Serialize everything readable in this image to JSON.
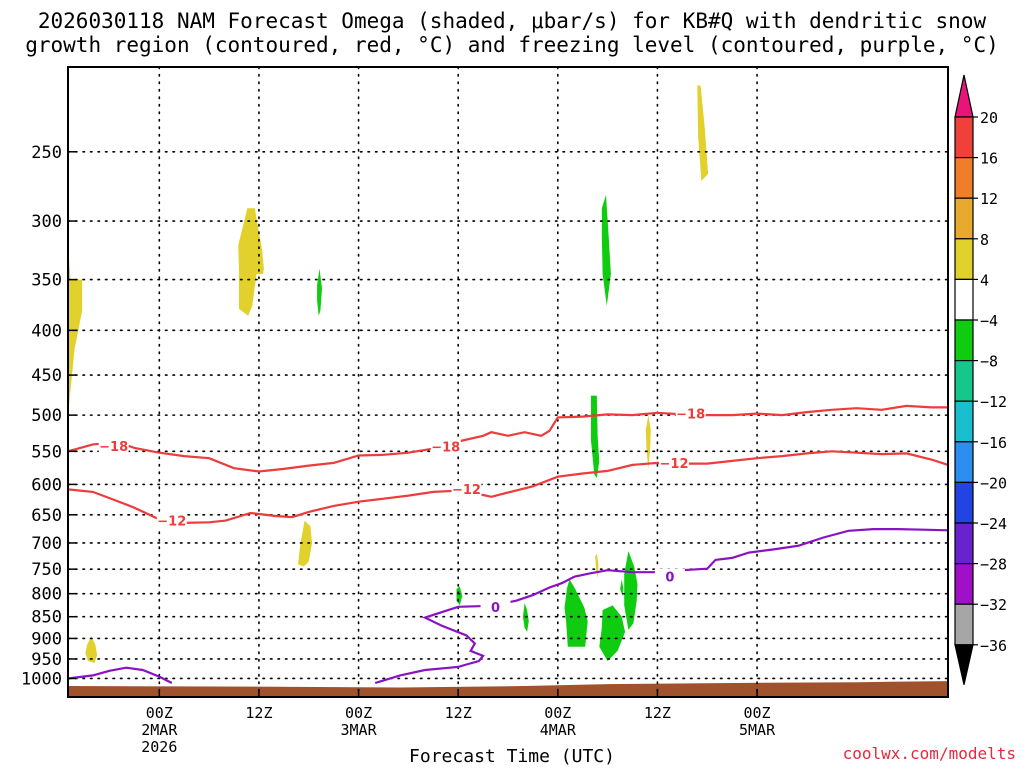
{
  "chart_data": {
    "type": "heatmap",
    "title_line1": "2026030118 NAM Forecast Omega (shaded, μbar/s) for KB#Q with dendritic snow",
    "title_line2": "growth region (contoured, red, °C) and freezing level (contoured, purple, °C)",
    "xlabel": "Forecast Time (UTC)",
    "credit": "coolwx.com/modelts",
    "y_axis": {
      "type": "pressure_log",
      "range_hpa": [
        1050,
        200
      ],
      "ticks": [
        250,
        300,
        350,
        400,
        450,
        500,
        550,
        600,
        650,
        700,
        750,
        800,
        850,
        900,
        950,
        1000
      ]
    },
    "x_axis": {
      "units": "forecast hours",
      "range": [
        -5,
        101
      ],
      "ticks": [
        {
          "hour": 6,
          "lines": [
            "00Z",
            "2MAR",
            "2026"
          ]
        },
        {
          "hour": 18,
          "lines": [
            "12Z"
          ]
        },
        {
          "hour": 30,
          "lines": [
            "00Z",
            "3MAR"
          ]
        },
        {
          "hour": 42,
          "lines": [
            "12Z"
          ]
        },
        {
          "hour": 54,
          "lines": [
            "00Z",
            "4MAR"
          ]
        },
        {
          "hour": 66,
          "lines": [
            "12Z"
          ]
        },
        {
          "hour": 78,
          "lines": [
            "00Z",
            "5MAR"
          ]
        }
      ]
    },
    "colorbar": {
      "labels": [
        "20",
        "16",
        "12",
        "8",
        "4",
        "−4",
        "−8",
        "−12",
        "−16",
        "−20",
        "−24",
        "−28",
        "−32",
        "−36"
      ],
      "bins": [
        {
          "lo": 16,
          "hi": 20,
          "color": "#f0403a"
        },
        {
          "lo": 12,
          "hi": 16,
          "color": "#ef7e2a"
        },
        {
          "lo": 8,
          "hi": 12,
          "color": "#e8a92f"
        },
        {
          "lo": 4,
          "hi": 8,
          "color": "#e2d12c"
        },
        {
          "lo": -4,
          "hi": 4,
          "color": "#ffffff"
        },
        {
          "lo": -8,
          "hi": -4,
          "color": "#10cc10"
        },
        {
          "lo": -12,
          "hi": -8,
          "color": "#16c78c"
        },
        {
          "lo": -16,
          "hi": -12,
          "color": "#19bfcf"
        },
        {
          "lo": -20,
          "hi": -16,
          "color": "#2b8ef0"
        },
        {
          "lo": -24,
          "hi": -20,
          "color": "#2244e2"
        },
        {
          "lo": -28,
          "hi": -24,
          "color": "#6a22cf"
        },
        {
          "lo": -32,
          "hi": -28,
          "color": "#a010c8"
        },
        {
          "lo": -36,
          "hi": -32,
          "color": "#a6a6a6"
        }
      ],
      "over_color": "#e8147a",
      "under_color": "#000000"
    },
    "omega_regions": [
      {
        "value": 5,
        "points": [
          [
            -5,
            320
          ],
          [
            -4.7,
            350
          ],
          [
            -3.3,
            350
          ],
          [
            -3.3,
            380
          ],
          [
            -4.2,
            420
          ],
          [
            -5,
            500
          ]
        ]
      },
      {
        "value": 5,
        "points": [
          [
            -2.7,
            915
          ],
          [
            -2.2,
            895
          ],
          [
            -1.7,
            915
          ],
          [
            -1.5,
            940
          ],
          [
            -1.8,
            960
          ],
          [
            -2.6,
            955
          ],
          [
            -2.9,
            935
          ]
        ]
      },
      {
        "value": 5,
        "points": [
          [
            15.5,
            320
          ],
          [
            16.6,
            290
          ],
          [
            17.5,
            290
          ],
          [
            18.4,
            325
          ],
          [
            18.6,
            340
          ],
          [
            18.5,
            345
          ],
          [
            17.7,
            345
          ],
          [
            17.2,
            375
          ],
          [
            16.7,
            385
          ],
          [
            15.6,
            378
          ],
          [
            15.6,
            340
          ]
        ]
      },
      {
        "value": 5,
        "points": [
          [
            23.5,
            660
          ],
          [
            24.2,
            670
          ],
          [
            24.4,
            700
          ],
          [
            24.0,
            735
          ],
          [
            23.4,
            745
          ],
          [
            22.7,
            740
          ],
          [
            23.0,
            700
          ]
        ]
      },
      {
        "value": 5,
        "points": [
          [
            71.2,
            210
          ],
          [
            71.7,
            235
          ],
          [
            72.1,
            265
          ],
          [
            71.3,
            270
          ],
          [
            70.9,
            240
          ],
          [
            70.8,
            210
          ]
        ]
      },
      {
        "value": 5,
        "points": [
          [
            64.9,
            500
          ],
          [
            65.2,
            520
          ],
          [
            65.1,
            550
          ],
          [
            64.9,
            575
          ],
          [
            64.7,
            550
          ],
          [
            64.6,
            520
          ]
        ]
      },
      {
        "value": 5,
        "points": [
          [
            58.7,
            720
          ],
          [
            58.9,
            740
          ],
          [
            58.8,
            768
          ],
          [
            58.6,
            750
          ],
          [
            58.5,
            725
          ]
        ]
      },
      {
        "value": -5,
        "points": [
          [
            25.0,
            355
          ],
          [
            25.3,
            340
          ],
          [
            25.6,
            358
          ],
          [
            25.4,
            380
          ],
          [
            25.2,
            385
          ],
          [
            25.0,
            370
          ]
        ]
      },
      {
        "value": -5,
        "points": [
          [
            59.3,
            290
          ],
          [
            59.8,
            280
          ],
          [
            60.1,
            310
          ],
          [
            60.4,
            345
          ],
          [
            59.9,
            375
          ],
          [
            59.4,
            345
          ],
          [
            59.3,
            310
          ]
        ]
      },
      {
        "value": -5,
        "points": [
          [
            58.0,
            475
          ],
          [
            58.7,
            475
          ],
          [
            58.8,
            530
          ],
          [
            59.0,
            565
          ],
          [
            58.7,
            590
          ],
          [
            58.4,
            585
          ],
          [
            58.0,
            535
          ]
        ]
      },
      {
        "value": -5,
        "points": [
          [
            41.8,
            790
          ],
          [
            42.2,
            785
          ],
          [
            42.5,
            805
          ],
          [
            42.2,
            825
          ],
          [
            41.8,
            815
          ]
        ]
      },
      {
        "value": -5,
        "points": [
          [
            50.0,
            820
          ],
          [
            50.3,
            835
          ],
          [
            50.5,
            860
          ],
          [
            50.3,
            885
          ],
          [
            50.0,
            875
          ],
          [
            49.8,
            850
          ]
        ]
      },
      {
        "value": -5,
        "points": [
          [
            55.4,
            770
          ],
          [
            56.1,
            790
          ],
          [
            57.2,
            830
          ],
          [
            57.6,
            860
          ],
          [
            57.3,
            920
          ],
          [
            55.2,
            920
          ],
          [
            55.0,
            860
          ],
          [
            54.8,
            830
          ],
          [
            55.1,
            790
          ]
        ]
      },
      {
        "value": -5,
        "points": [
          [
            62.5,
            715
          ],
          [
            63.2,
            745
          ],
          [
            63.6,
            780
          ],
          [
            63.5,
            815
          ],
          [
            63.1,
            865
          ],
          [
            62.5,
            880
          ],
          [
            62.0,
            825
          ],
          [
            62.0,
            760
          ]
        ]
      },
      {
        "value": -5,
        "points": [
          [
            59.4,
            835
          ],
          [
            60.6,
            825
          ],
          [
            61.7,
            850
          ],
          [
            62.1,
            885
          ],
          [
            61.2,
            930
          ],
          [
            60.0,
            955
          ],
          [
            59.0,
            920
          ],
          [
            59.3,
            875
          ]
        ]
      },
      {
        "value": -5,
        "points": [
          [
            61.7,
            770
          ],
          [
            61.9,
            790
          ],
          [
            61.8,
            805
          ],
          [
            61.5,
            790
          ]
        ]
      }
    ],
    "dgz_contours": [
      {
        "label": "-18",
        "label_at": [
          0.5,
          542
        ],
        "points": [
          [
            -5,
            550
          ],
          [
            -2,
            540
          ],
          [
            1,
            537
          ],
          [
            3,
            545
          ],
          [
            6,
            552
          ],
          [
            9,
            557
          ],
          [
            12,
            560
          ],
          [
            15,
            575
          ],
          [
            18,
            580
          ],
          [
            21,
            576
          ],
          [
            24,
            571
          ],
          [
            27,
            567
          ],
          [
            30,
            556
          ],
          [
            33,
            555
          ],
          [
            36,
            552
          ],
          [
            39,
            546
          ],
          [
            42,
            536
          ],
          [
            45,
            528
          ],
          [
            46,
            523
          ],
          [
            48,
            528
          ],
          [
            50,
            523
          ],
          [
            52,
            528
          ],
          [
            53,
            521
          ],
          [
            54,
            503
          ],
          [
            57,
            502
          ],
          [
            60,
            499
          ],
          [
            63,
            500
          ],
          [
            66,
            497
          ],
          [
            69,
            499
          ],
          [
            72,
            500
          ],
          [
            75,
            500
          ],
          [
            78,
            498
          ],
          [
            81,
            500
          ],
          [
            84,
            496
          ],
          [
            87,
            493
          ],
          [
            90,
            491
          ],
          [
            93,
            493
          ],
          [
            96,
            488
          ],
          [
            99,
            490
          ],
          [
            101,
            490
          ]
        ],
        "label_pos": [
          [
            0.5,
            542
          ],
          [
            40.5,
            543
          ],
          [
            70.0,
            498
          ]
        ]
      },
      {
        "label": "-12",
        "label_pos": [
          [
            7.5,
            660
          ],
          [
            43.0,
            607
          ],
          [
            68.0,
            567
          ]
        ],
        "points": [
          [
            -5,
            608
          ],
          [
            -2,
            612
          ],
          [
            0,
            622
          ],
          [
            3,
            638
          ],
          [
            6,
            658
          ],
          [
            9,
            664
          ],
          [
            12,
            663
          ],
          [
            14,
            660
          ],
          [
            17,
            647
          ],
          [
            20,
            652
          ],
          [
            22,
            654
          ],
          [
            24,
            645
          ],
          [
            27,
            635
          ],
          [
            30,
            628
          ],
          [
            33,
            623
          ],
          [
            36,
            618
          ],
          [
            39,
            612
          ],
          [
            42,
            610
          ],
          [
            45,
            617
          ],
          [
            46,
            620
          ],
          [
            48,
            613
          ],
          [
            51,
            603
          ],
          [
            54,
            588
          ],
          [
            57,
            583
          ],
          [
            60,
            579
          ],
          [
            63,
            570
          ],
          [
            66,
            567
          ],
          [
            69,
            568
          ],
          [
            72,
            568
          ],
          [
            75,
            564
          ],
          [
            78,
            560
          ],
          [
            81,
            557
          ],
          [
            84,
            553
          ],
          [
            87,
            550
          ],
          [
            90,
            552
          ],
          [
            93,
            554
          ],
          [
            96,
            553
          ],
          [
            99,
            562
          ],
          [
            101,
            570
          ]
        ]
      }
    ],
    "freezing_contours": [
      {
        "label": "0",
        "label_pos": [
          [
            46.5,
            828
          ],
          [
            67.5,
            765
          ]
        ],
        "points": [
          [
            -5,
            1000
          ],
          [
            -2,
            992
          ],
          [
            0,
            980
          ],
          [
            2,
            972
          ],
          [
            4,
            978
          ],
          [
            6,
            995
          ],
          [
            7.5,
            1012
          ]
        ],
        "has_label": false
      },
      {
        "label": "0",
        "label_pos": [
          [
            46.5,
            828
          ],
          [
            67.5,
            765
          ]
        ],
        "points": [
          [
            32,
            1012
          ],
          [
            35,
            992
          ],
          [
            38,
            978
          ],
          [
            41,
            972
          ],
          [
            42,
            970
          ],
          [
            43,
            964
          ],
          [
            44.5,
            955
          ],
          [
            45,
            942
          ],
          [
            43.5,
            930
          ],
          [
            44,
            912
          ],
          [
            43,
            893
          ],
          [
            40,
            870
          ],
          [
            38,
            852
          ],
          [
            40,
            840
          ],
          [
            42,
            828
          ],
          [
            46,
            826
          ],
          [
            49,
            815
          ],
          [
            51,
            803
          ],
          [
            53,
            787
          ],
          [
            54.5,
            778
          ],
          [
            56,
            765
          ],
          [
            58,
            758
          ],
          [
            60,
            752
          ],
          [
            63,
            756
          ],
          [
            66,
            756
          ],
          [
            69,
            752
          ],
          [
            72,
            749
          ],
          [
            73,
            732
          ],
          [
            75,
            728
          ],
          [
            77,
            718
          ],
          [
            80,
            712
          ],
          [
            83,
            705
          ],
          [
            86,
            690
          ],
          [
            89,
            678
          ],
          [
            92,
            675
          ],
          [
            95,
            675
          ],
          [
            98,
            676
          ],
          [
            101,
            677
          ]
        ],
        "has_label": true
      }
    ],
    "terrain": {
      "color": "#a0522d",
      "points": [
        [
          -5,
          1020
        ],
        [
          20,
          1022
        ],
        [
          35,
          1024
        ],
        [
          50,
          1020
        ],
        [
          60,
          1015
        ],
        [
          75,
          1012
        ],
        [
          90,
          1010
        ],
        [
          101,
          1007
        ]
      ]
    }
  }
}
